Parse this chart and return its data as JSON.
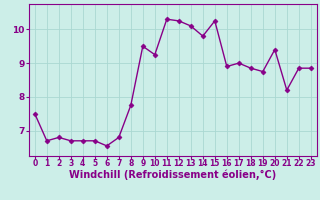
{
  "x": [
    0,
    1,
    2,
    3,
    4,
    5,
    6,
    7,
    8,
    9,
    10,
    11,
    12,
    13,
    14,
    15,
    16,
    17,
    18,
    19,
    20,
    21,
    22,
    23
  ],
  "y": [
    7.5,
    6.7,
    6.8,
    6.7,
    6.7,
    6.7,
    6.55,
    6.8,
    7.75,
    9.5,
    9.25,
    10.3,
    10.25,
    10.1,
    9.8,
    10.25,
    8.9,
    9.0,
    8.85,
    8.75,
    9.4,
    8.2,
    8.85,
    8.85
  ],
  "line_color": "#880088",
  "marker": "D",
  "marker_size": 2.5,
  "xlabel": "Windchill (Refroidissement éolien,°C)",
  "xlabel_fontsize": 7,
  "xtick_fontsize": 5.5,
  "ytick_fontsize": 6.5,
  "xlim": [
    -0.5,
    23.5
  ],
  "ylim": [
    6.25,
    10.75
  ],
  "yticks": [
    7,
    8,
    9,
    10
  ],
  "bg_color": "#cceee8",
  "grid_color": "#aad8d2",
  "linewidth": 1.0
}
